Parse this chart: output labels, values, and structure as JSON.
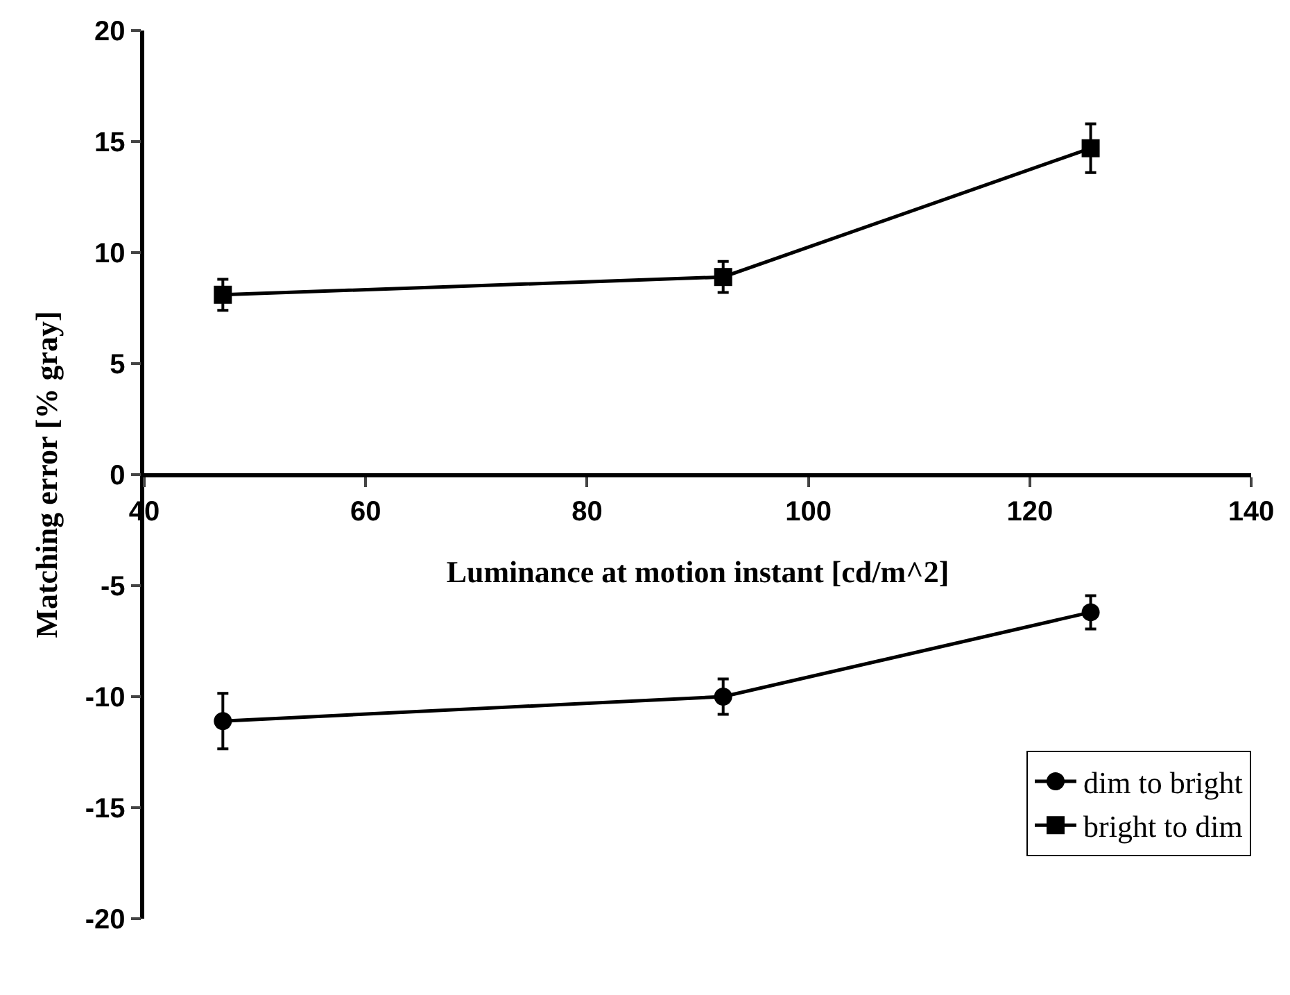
{
  "chart_data": {
    "type": "line",
    "xlabel": "Luminance at motion instant [cd/m^2]",
    "ylabel": "Matching error [% gray]",
    "x": [
      47.1,
      92.3,
      125.5
    ],
    "series": [
      {
        "name": "dim to bright",
        "color": "#000000",
        "marker": "circle",
        "values": [
          -11.1,
          -10.0,
          -6.2
        ],
        "errors": [
          1.25,
          0.8,
          0.75
        ]
      },
      {
        "name": "bright to dim",
        "color": "#000000",
        "marker": "square",
        "values": [
          8.1,
          8.9,
          14.7
        ],
        "errors": [
          0.7,
          0.7,
          1.1
        ]
      }
    ],
    "xlim": [
      40,
      140
    ],
    "xticks": [
      40,
      60,
      80,
      100,
      120,
      140
    ],
    "ylim": [
      -20,
      20
    ],
    "yticks": [
      -20,
      -15,
      -10,
      -5,
      0,
      5,
      10,
      15,
      20
    ],
    "grid": false,
    "legend": "bottom right",
    "line_style": "solid"
  }
}
